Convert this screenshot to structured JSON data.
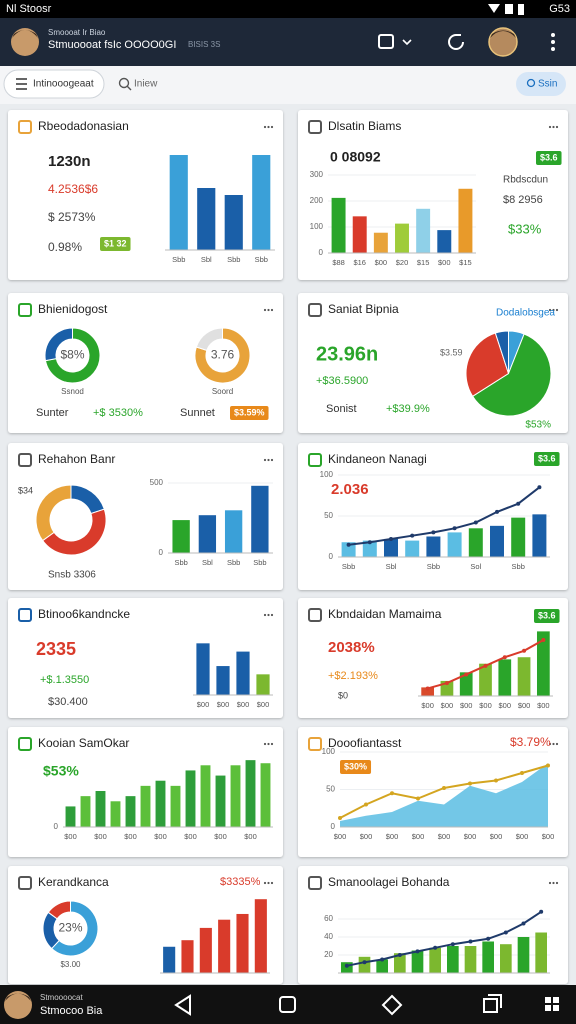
{
  "status_bar": {
    "carrier": "Nl Stoosr",
    "time": "G53"
  },
  "app_bar": {
    "subtitle": "Smoooat Ir Biao",
    "title": "Stmuoooat fsIc OOOO0GI",
    "tag": "BISIS 3S"
  },
  "search": {
    "tab": "Intinooogeaat",
    "placeholder": "Iniew",
    "button": "Ssin"
  },
  "cards": [
    {
      "title": "Rbeodadonasian",
      "lines": [
        {
          "text": "1230n",
          "color": "#222222"
        },
        {
          "text": "4.2536$6",
          "color": "#d93b2b"
        },
        {
          "text": "$ 2573%",
          "color": "#444444"
        },
        {
          "text": "0.98%",
          "color": "#444444"
        }
      ],
      "badge": {
        "text": "$1 32",
        "color": "#7cb82f"
      },
      "charts": [
        {
          "type": "bar",
          "values": [
            95,
            62,
            55,
            95
          ],
          "colors": [
            "#3aa0d8",
            "#1a5fa8",
            "#1a5fa8",
            "#3aa0d8"
          ],
          "ylim": [
            0,
            100
          ],
          "categories": [
            "Sbb",
            "Sbl",
            "Sbb",
            "Sbb"
          ]
        }
      ]
    },
    {
      "title": "Dlsatin Biams",
      "lines": [
        {
          "text": "0 08092",
          "color": "#222222"
        },
        {
          "text": "Rbdscdun",
          "color": "#444444"
        },
        {
          "text": "$8 2956",
          "color": "#444444"
        },
        {
          "text": "$33%",
          "color": "#2aa52a"
        }
      ],
      "badge": {
        "text": "$3.6",
        "color": "#2aa52a"
      },
      "charts": [
        {
          "type": "bar",
          "values": [
            212,
            141,
            78,
            113,
            170,
            88,
            247
          ],
          "colors": [
            "#2aa52a",
            "#d93b2b",
            "#e8a33a",
            "#9fcc3a",
            "#8fd0e8",
            "#1a5fa8",
            "#e89a2a"
          ],
          "ylim": [
            0,
            300
          ],
          "yticks": [
            0,
            100,
            200,
            300
          ],
          "categories": [
            "$88",
            "$16",
            "$00",
            "$20",
            "$15",
            "$00",
            "$15"
          ]
        }
      ]
    },
    {
      "title": "Bhienidogost",
      "lines": [
        {
          "text": "Sunter",
          "color": "#333333"
        },
        {
          "text": "+$ 3530%",
          "color": "#2aa52a"
        },
        {
          "text": "Sunnet",
          "color": "#333333"
        }
      ],
      "badge": {
        "text": "$3.59%",
        "color": "#e8891a"
      },
      "charts": [
        {
          "type": "donut",
          "values": [
            72,
            28
          ],
          "colors": [
            "#2aa52a",
            "#1a5fa8"
          ],
          "label": "$8%",
          "caption": "Ssnod"
        },
        {
          "type": "donut",
          "values": [
            80,
            20
          ],
          "colors": [
            "#e8a33a",
            "#e0e0e0"
          ],
          "label": "3.76",
          "caption": "Soord"
        }
      ]
    },
    {
      "title": "Saniat Bipnia",
      "link": "Dodalobsgea",
      "lines": [
        {
          "text": "23.96n",
          "color": "#2aa52a"
        },
        {
          "text": "+$36.5900",
          "color": "#2aa52a"
        },
        {
          "text": "Sonist",
          "color": "#333333"
        },
        {
          "text": "+$39.9%",
          "color": "#2aa52a"
        },
        {
          "text": "$3.59",
          "color": "#666666"
        }
      ],
      "charts": [
        {
          "type": "pie",
          "values": [
            6,
            60,
            29,
            5
          ],
          "colors": [
            "#3aa0d8",
            "#2aa52a",
            "#d93b2b",
            "#1a5fa8"
          ],
          "caption": "$53%"
        }
      ]
    },
    {
      "title": "Rehahon Banr",
      "lines": [
        {
          "text": "Snsb 3306",
          "color": "#444444"
        },
        {
          "text": "$34",
          "color": "#444444"
        }
      ],
      "charts": [
        {
          "type": "donut",
          "values": [
            20,
            45,
            35
          ],
          "colors": [
            "#1a5fa8",
            "#d93b2b",
            "#e8a33a"
          ]
        },
        {
          "type": "bar",
          "values": [
            235,
            270,
            305,
            480
          ],
          "colors": [
            "#2aa52a",
            "#1a5fa8",
            "#3aa0d8",
            "#1a5fa8"
          ],
          "ylim": [
            0,
            500
          ],
          "yticks": [
            0,
            500
          ],
          "categories": [
            "Sbb",
            "Sbl",
            "Sbb",
            "Sbb"
          ]
        }
      ]
    },
    {
      "title": "Kindaneon Nanagi",
      "lines": [
        {
          "text": "2.036",
          "color": "#d93b2b"
        }
      ],
      "badge": {
        "text": "$3.6",
        "color": "#2aa52a"
      },
      "charts": [
        {
          "type": "bar",
          "values": [
            18,
            20,
            22,
            20,
            25,
            30,
            35,
            38,
            48,
            52
          ],
          "colors": [
            "#5bbde3",
            "#5bbde3",
            "#1a5fa8",
            "#5bbde3",
            "#1a5fa8",
            "#5bbde3",
            "#2aa52a",
            "#1a5fa8",
            "#2aa52a",
            "#1a5fa8"
          ],
          "ylim": [
            0,
            100
          ],
          "yticks": [
            0,
            50,
            100
          ],
          "categories": [
            "Sbb",
            null,
            "Sbl",
            null,
            "Sbb",
            null,
            "Sol",
            null,
            "Sbb",
            null
          ],
          "line": {
            "values": [
              15,
              18,
              22,
              26,
              30,
              35,
              42,
              55,
              65,
              85
            ],
            "color": "#1f3a6a"
          }
        }
      ]
    },
    {
      "title": "Btinoo6kandncke",
      "lines": [
        {
          "text": "2335",
          "color": "#d93b2b"
        },
        {
          "text": "+$.1.3550",
          "color": "#2aa52a"
        },
        {
          "text": "$30.400",
          "color": "#444444"
        }
      ],
      "charts": [
        {
          "type": "bar",
          "values": [
            50,
            28,
            42,
            20
          ],
          "colors": [
            "#1a5fa8",
            "#1a5fa8",
            "#1a5fa8",
            "#7cb82f"
          ],
          "ylim": [
            0,
            60
          ],
          "categories": [
            "$00",
            "$00",
            "$00",
            "$00"
          ]
        }
      ]
    },
    {
      "title": "Kbndaidan Mamaima",
      "lines": [
        {
          "text": "2038%",
          "color": "#d93b2b"
        },
        {
          "text": "+$2.193%",
          "color": "#e8891a"
        },
        {
          "text": "$0",
          "color": "#444444"
        }
      ],
      "badge": {
        "text": "$3.6",
        "color": "#2aa52a"
      },
      "charts": [
        {
          "type": "bar",
          "values": [
            8,
            14,
            22,
            30,
            34,
            36,
            60
          ],
          "colors": [
            "#d94a2b",
            "#7cb82f",
            "#2aa52a",
            "#7cb82f",
            "#2aa52a",
            "#7cb82f",
            "#2aa52a"
          ],
          "ylim": [
            0,
            65
          ],
          "categories": [
            "$00",
            "$00",
            "$00",
            "$00",
            "$00",
            "$00",
            "$00"
          ],
          "line": {
            "values": [
              7,
              12,
              20,
              28,
              36,
              42,
              52
            ],
            "color": "#d93b2b"
          }
        }
      ]
    },
    {
      "title": "Kooian SamOkar",
      "lines": [
        {
          "text": "$53%",
          "color": "#2aa52a"
        }
      ],
      "charts": [
        {
          "type": "bar",
          "values": [
            20,
            30,
            35,
            25,
            30,
            40,
            45,
            40,
            55,
            60,
            50,
            60,
            65,
            62
          ],
          "colors": [
            "#2e9e3a",
            "#5cbf3a",
            "#2e9e3a",
            "#5cbf3a",
            "#2e9e3a",
            "#5cbf3a",
            "#2e9e3a",
            "#5cbf3a",
            "#2e9e3a",
            "#5cbf3a",
            "#2e9e3a",
            "#5cbf3a",
            "#2e9e3a",
            "#5cbf3a"
          ],
          "ylim": [
            0,
            70
          ],
          "yticks": [
            0
          ],
          "categories": [
            "$00",
            null,
            "$00",
            null,
            "$00",
            null,
            "$00",
            null,
            "$00",
            null,
            "$00",
            null,
            "$00",
            null
          ]
        }
      ]
    },
    {
      "title": "Dooofiantasst",
      "lines": [
        {
          "text": "$3.79%",
          "color": "#d93b2b"
        }
      ],
      "badge": {
        "text": "$30%",
        "color": "#e8891a"
      },
      "charts": [
        {
          "type": "area",
          "values": [
            8,
            15,
            20,
            35,
            30,
            55,
            45,
            60,
            85
          ],
          "color": "#5bbde3",
          "ylim": [
            0,
            100
          ],
          "yticks": [
            0,
            50,
            100
          ],
          "categories": [
            "$00",
            "$00",
            "$00",
            "$00",
            "$00",
            "$00",
            "$00",
            "$00",
            "$00"
          ],
          "line": {
            "values": [
              12,
              30,
              45,
              38,
              52,
              58,
              62,
              72,
              82
            ],
            "color": "#d4a520"
          }
        }
      ]
    },
    {
      "title": "Kerandkanca",
      "lines": [
        {
          "text": "$3335%",
          "color": "#d93b2b"
        }
      ],
      "charts": [
        {
          "type": "donut",
          "values": [
            62,
            23,
            15
          ],
          "colors": [
            "#3aa0d8",
            "#1a5fa8",
            "#d93b2b"
          ],
          "label": "23%",
          "caption": "$3.00"
        },
        {
          "type": "bar",
          "values": [
            32,
            40,
            55,
            65,
            72,
            90
          ],
          "colors": [
            "#1a5fa8",
            "#d93b2b",
            "#d93b2b",
            "#d93b2b",
            "#d93b2b",
            "#d93b2b"
          ],
          "ylim": [
            0,
            100
          ]
        }
      ]
    },
    {
      "title": "Smanoolagei Bohanda",
      "charts": [
        {
          "type": "bar",
          "values": [
            12,
            18,
            15,
            22,
            25,
            28,
            30,
            30,
            35,
            32,
            40,
            45
          ],
          "colors": [
            "#2aa52a",
            "#7cb82f",
            "#2aa52a",
            "#7cb82f",
            "#2aa52a",
            "#7cb82f",
            "#2aa52a",
            "#7cb82f",
            "#2aa52a",
            "#7cb82f",
            "#2aa52a",
            "#7cb82f"
          ],
          "ylim": [
            0,
            80
          ],
          "yticks": [
            20,
            40,
            60
          ],
          "line": {
            "values": [
              8,
              12,
              15,
              20,
              24,
              28,
              32,
              35,
              38,
              45,
              55,
              68
            ],
            "color": "#1f3a6a"
          }
        }
      ]
    }
  ],
  "bottom_bar": {
    "name": "Stmoooocat",
    "subtitle": "Stmocoo Bia"
  }
}
